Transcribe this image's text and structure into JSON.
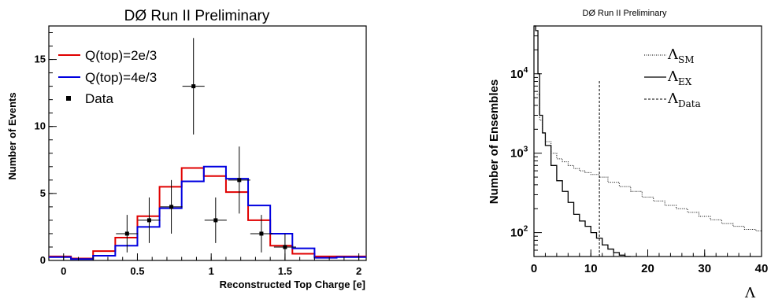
{
  "chart_data": [
    {
      "type": "histogram",
      "title": "DØ Run II Preliminary",
      "xlabel": "Reconstructed Top Charge [e]",
      "ylabel": "Number of Events",
      "xlim": [
        -0.1,
        2.05
      ],
      "ylim": [
        0,
        17.5
      ],
      "xticks": [
        "0",
        "0.5",
        "1",
        "1.5",
        "2"
      ],
      "yticks": [
        "0",
        "5",
        "10",
        "15"
      ],
      "grid": false,
      "legend_position": "top-left",
      "bin_edges": [
        -0.1,
        0.05,
        0.2,
        0.35,
        0.5,
        0.65,
        0.8,
        0.95,
        1.1,
        1.25,
        1.4,
        1.55,
        1.7,
        1.85,
        2.05
      ],
      "series": [
        {
          "name": "Q(top)=2e/3",
          "color": "#e00000",
          "style": "step",
          "values": [
            0.3,
            0.15,
            0.7,
            1.7,
            3.3,
            5.5,
            6.9,
            6.3,
            5.1,
            3.0,
            1.1,
            0.5,
            0.3,
            0.3
          ]
        },
        {
          "name": "Q(top)=4e/3",
          "color": "#0000e0",
          "style": "step",
          "values": [
            0.25,
            0.1,
            0.35,
            1.1,
            2.5,
            3.9,
            5.9,
            7.0,
            6.1,
            4.1,
            2.0,
            0.9,
            0.2,
            0.25
          ]
        },
        {
          "name": "Data",
          "color": "#000000",
          "style": "markers",
          "points": [
            {
              "x": 0.43,
              "y": 2,
              "yerr": 1.4,
              "xerr": 0.075
            },
            {
              "x": 0.58,
              "y": 3,
              "yerr": 1.7,
              "xerr": 0.075
            },
            {
              "x": 0.73,
              "y": 4,
              "yerr": 2.0,
              "xerr": 0.075
            },
            {
              "x": 0.88,
              "y": 13,
              "yerr": 3.6,
              "xerr": 0.075
            },
            {
              "x": 1.03,
              "y": 3,
              "yerr": 1.7,
              "xerr": 0.075
            },
            {
              "x": 1.19,
              "y": 6,
              "yerr": 2.5,
              "xerr": 0.075
            },
            {
              "x": 1.34,
              "y": 2,
              "yerr": 1.4,
              "xerr": 0.075
            },
            {
              "x": 1.5,
              "y": 1,
              "yerr": 1.0,
              "xerr": 0.075
            }
          ]
        }
      ]
    },
    {
      "type": "histogram",
      "title": "DØ Run II Preliminary",
      "xlabel": "Λ",
      "ylabel": "Number of Ensembles",
      "yscale": "log",
      "xlim": [
        0,
        40
      ],
      "ylim": [
        50,
        40000
      ],
      "xticks": [
        "0",
        "10",
        "20",
        "30",
        "40"
      ],
      "ytick_bases": [
        "10",
        "10",
        "10"
      ],
      "ytick_exps": [
        "2",
        "3",
        "4"
      ],
      "grid": false,
      "legend_position": "top-right",
      "series": [
        {
          "name": "SM",
          "legend_base": "Λ",
          "legend_sub": "SM",
          "style": "dotted",
          "color": "#000000",
          "x": [
            0.5,
            1,
            1.5,
            2,
            3,
            4,
            5,
            6,
            7,
            8,
            9,
            10,
            11.5,
            13,
            15,
            17,
            19,
            21,
            23,
            25,
            27,
            29,
            31,
            33,
            35,
            37,
            39,
            40
          ],
          "values": [
            5500,
            2600,
            1800,
            1400,
            1000,
            850,
            780,
            700,
            640,
            600,
            570,
            540,
            500,
            430,
            380,
            330,
            280,
            250,
            220,
            200,
            180,
            160,
            145,
            130,
            120,
            110,
            105,
            95
          ]
        },
        {
          "name": "EX",
          "legend_base": "Λ",
          "legend_sub": "EX",
          "style": "solid",
          "color": "#000000",
          "x": [
            0,
            0.3,
            0.7,
            1,
            1.5,
            2,
            3,
            4,
            5,
            6,
            7,
            8,
            9,
            10,
            11,
            12,
            13,
            14,
            15,
            16,
            17
          ],
          "values": [
            40000,
            35000,
            10000,
            3000,
            1800,
            1250,
            700,
            450,
            330,
            240,
            170,
            140,
            120,
            100,
            85,
            70,
            62,
            56,
            52,
            50,
            48
          ]
        },
        {
          "name": "Data",
          "legend_base": "Λ",
          "legend_sub": "Data",
          "style": "dashed",
          "color": "#000000",
          "x_value": 11.5
        }
      ]
    }
  ]
}
